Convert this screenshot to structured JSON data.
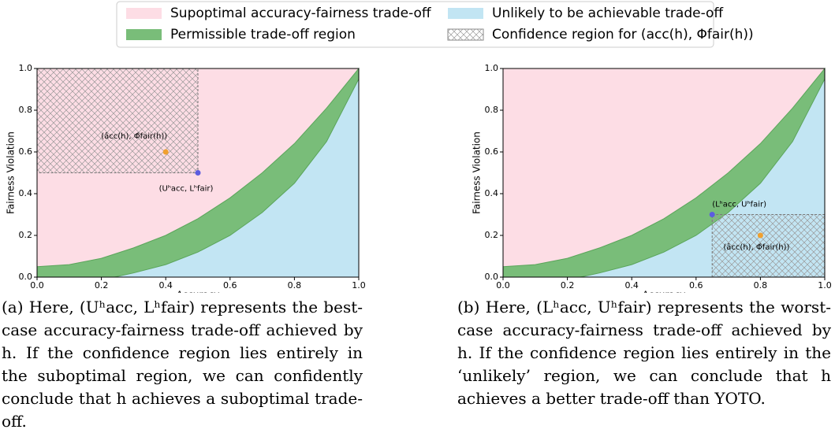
{
  "legend": [
    {
      "name": "Supoptimal accuracy-fairness trade-off",
      "color": "#fddde5"
    },
    {
      "name": "Unlikely to be achievable trade-off",
      "color": "#c2e5f3"
    },
    {
      "name": "Permissible trade-off region",
      "color": "#79bd79"
    },
    {
      "name": "Confidence region for (acc(h), Φfair(h))",
      "color": "#888888",
      "pattern": "crosshatch"
    }
  ],
  "chart_data": [
    {
      "type": "region",
      "xlabel": "Accuracy",
      "ylabel": "Fairness Violation",
      "xlim": [
        0,
        1
      ],
      "ylim": [
        0,
        1
      ],
      "xticks": [
        {
          "value": 0,
          "label": "0.0"
        },
        {
          "value": 0.2,
          "label": "0.2"
        },
        {
          "value": 0.4,
          "label": "0.4"
        },
        {
          "value": 0.6,
          "label": "0.6"
        },
        {
          "value": 0.8,
          "label": "0.8"
        },
        {
          "value": 1,
          "label": "1.0"
        }
      ],
      "yticks": [
        {
          "value": 0,
          "label": "0.0"
        },
        {
          "value": 0.2,
          "label": "0.2"
        },
        {
          "value": 0.4,
          "label": "0.4"
        },
        {
          "value": 0.6,
          "label": "0.6"
        },
        {
          "value": 0.8,
          "label": "0.8"
        },
        {
          "value": 1,
          "label": "1.0"
        }
      ],
      "upper_boundary": {
        "x": [
          0,
          0.1,
          0.2,
          0.3,
          0.4,
          0.5,
          0.6,
          0.7,
          0.8,
          0.9,
          1.0
        ],
        "y": [
          0.05,
          0.06,
          0.09,
          0.14,
          0.2,
          0.28,
          0.38,
          0.5,
          0.64,
          0.81,
          1.0
        ]
      },
      "lower_boundary": {
        "x": [
          0.24,
          0.3,
          0.4,
          0.5,
          0.6,
          0.7,
          0.8,
          0.9,
          1.0
        ],
        "y": [
          0,
          0.02,
          0.06,
          0.12,
          0.2,
          0.31,
          0.45,
          0.65,
          0.95
        ]
      },
      "confidence_region": {
        "x": [
          0,
          0.5
        ],
        "y": [
          0.5,
          1
        ]
      },
      "points": [
        {
          "x": 0.5,
          "y": 0.5,
          "color": "#5c5ce0",
          "label": "(Uʰacc, Lʰfair)"
        },
        {
          "x": 0.4,
          "y": 0.6,
          "color": "#f0a030",
          "label": "(âcc(h), Φ̂fair(h))"
        }
      ]
    },
    {
      "type": "region",
      "xlabel": "Accuracy",
      "ylabel": "Fairness Violation",
      "xlim": [
        0,
        1
      ],
      "ylim": [
        0,
        1
      ],
      "xticks": [
        {
          "value": 0,
          "label": "0.0"
        },
        {
          "value": 0.2,
          "label": "0.2"
        },
        {
          "value": 0.4,
          "label": "0.4"
        },
        {
          "value": 0.6,
          "label": "0.6"
        },
        {
          "value": 0.8,
          "label": "0.8"
        },
        {
          "value": 1,
          "label": "1.0"
        }
      ],
      "yticks": [
        {
          "value": 0,
          "label": "0.0"
        },
        {
          "value": 0.2,
          "label": "0.2"
        },
        {
          "value": 0.4,
          "label": "0.4"
        },
        {
          "value": 0.6,
          "label": "0.6"
        },
        {
          "value": 0.8,
          "label": "0.8"
        },
        {
          "value": 1,
          "label": "1.0"
        }
      ],
      "upper_boundary": {
        "x": [
          0,
          0.1,
          0.2,
          0.3,
          0.4,
          0.5,
          0.6,
          0.7,
          0.8,
          0.9,
          1.0
        ],
        "y": [
          0.05,
          0.06,
          0.09,
          0.14,
          0.2,
          0.28,
          0.38,
          0.5,
          0.64,
          0.81,
          1.0
        ]
      },
      "lower_boundary": {
        "x": [
          0.24,
          0.3,
          0.4,
          0.5,
          0.6,
          0.7,
          0.8,
          0.9,
          1.0
        ],
        "y": [
          0,
          0.02,
          0.06,
          0.12,
          0.2,
          0.31,
          0.45,
          0.65,
          0.95
        ]
      },
      "confidence_region": {
        "x": [
          0.65,
          1
        ],
        "y": [
          0,
          0.3
        ]
      },
      "points": [
        {
          "x": 0.65,
          "y": 0.3,
          "color": "#5c5ce0",
          "label": "(Lʰacc, Uʰfair)"
        },
        {
          "x": 0.8,
          "y": 0.2,
          "color": "#f0a030",
          "label": "(âcc(h), Φ̂fair(h))"
        }
      ]
    }
  ],
  "captions": [
    "(a) Here, (Uʰacc, Lʰfair) represents the best-case accuracy-fairness trade-off achieved by h. If the confidence region lies entirely in the suboptimal region, we can confidently conclude that h achieves a suboptimal trade-off.",
    "(b) Here, (Lʰacc, Uʰfair) represents the worst-case accuracy-fairness trade-off achieved by h. If the confidence region lies entirely in the ‘unlikely’ region, we can conclude that h achieves a better trade-off than YOTO."
  ]
}
